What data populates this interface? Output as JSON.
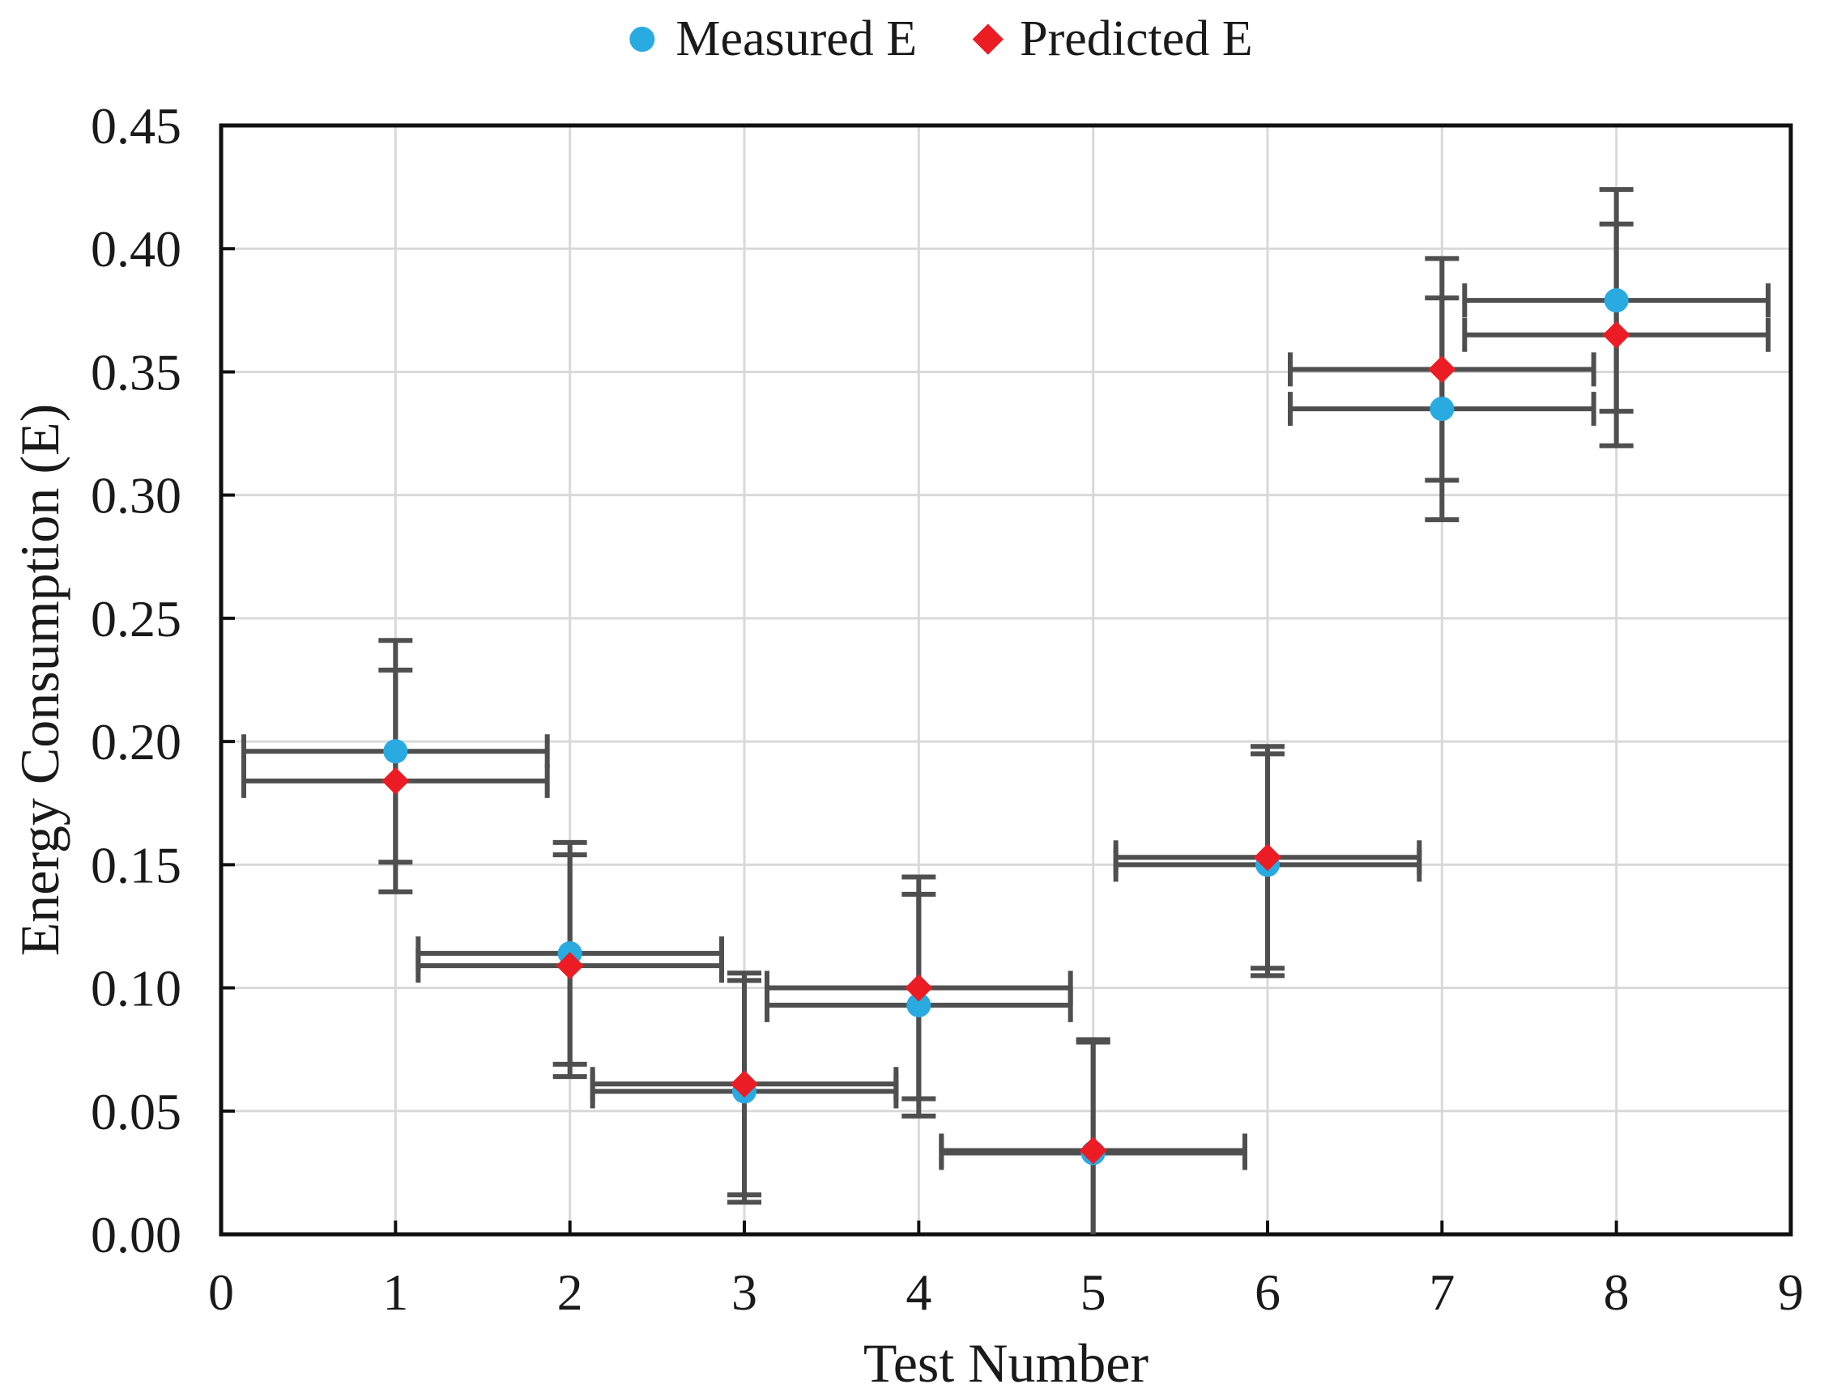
{
  "page": {
    "background": "#ffffff"
  },
  "legend": {
    "position": "top-center",
    "items": [
      {
        "label": "Measured E",
        "marker": "circle-icon",
        "color": "#29ABE2"
      },
      {
        "label": "Predicted E",
        "marker": "diamond-icon",
        "color": "#EC1C24"
      }
    ]
  },
  "chart_data": {
    "type": "scatter",
    "xlabel": "Test Number",
    "ylabel": "Energy Consumption (E)",
    "xlim": [
      0,
      9
    ],
    "ylim": [
      0,
      0.45
    ],
    "x_ticks": [
      0,
      1,
      2,
      3,
      4,
      5,
      6,
      7,
      8,
      9
    ],
    "y_ticks": [
      0,
      0.05,
      0.1,
      0.15,
      0.2,
      0.25,
      0.3,
      0.35,
      0.4,
      0.45
    ],
    "y_tick_labels": [
      "0.00",
      "0.05",
      "0.10",
      "0.15",
      "0.20",
      "0.25",
      "0.30",
      "0.35",
      "0.40",
      "0.45"
    ],
    "grid": true,
    "legend_position": "top-center",
    "series": [
      {
        "name": "Measured E",
        "marker": "circle",
        "color": "#29ABE2",
        "x": [
          1,
          2,
          3,
          4,
          5,
          6,
          7,
          8
        ],
        "y": [
          0.196,
          0.114,
          0.058,
          0.093,
          0.033,
          0.15,
          0.335,
          0.379
        ],
        "x_error": 0.87,
        "y_error": 0.045
      },
      {
        "name": "Predicted E",
        "marker": "diamond",
        "color": "#EC1C24",
        "x": [
          1,
          2,
          3,
          4,
          5,
          6,
          7,
          8
        ],
        "y": [
          0.184,
          0.109,
          0.061,
          0.1,
          0.034,
          0.153,
          0.351,
          0.365
        ],
        "x_error": 0.87,
        "y_error": 0.045
      }
    ],
    "error_bar_color": "#4f4f4f",
    "gridline_color": "#D9D9D9",
    "axis_color": "#111111"
  }
}
